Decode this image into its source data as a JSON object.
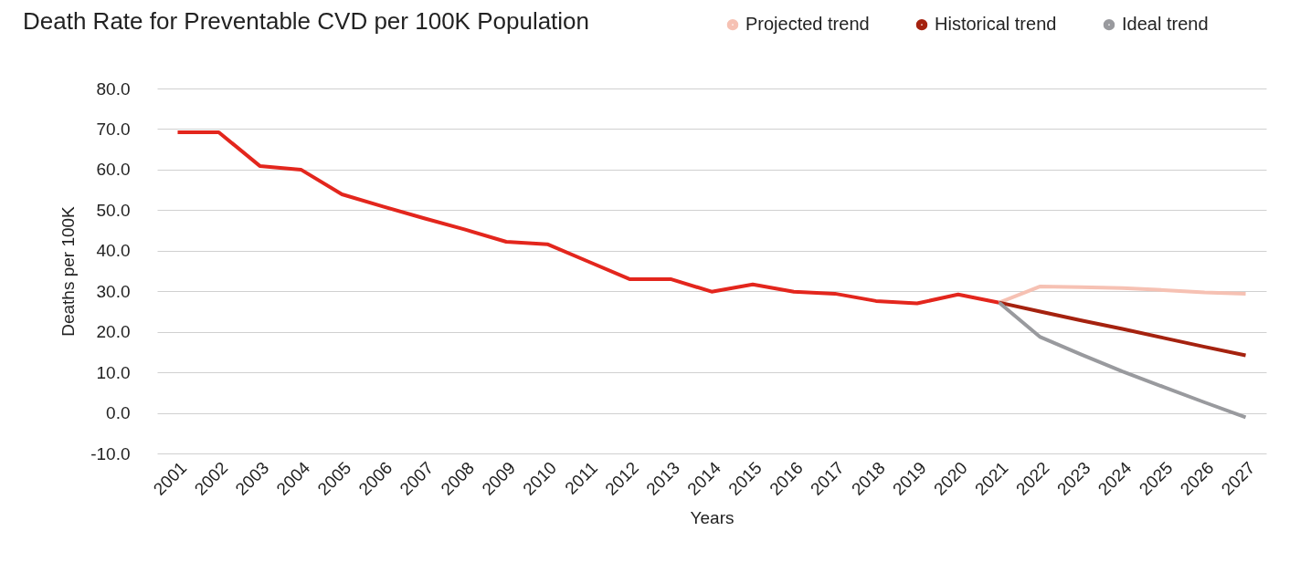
{
  "chart_data": {
    "type": "line",
    "title": "Death Rate for Preventable CVD per 100K Population",
    "xlabel": "Years",
    "ylabel": "Deaths per 100K",
    "categories": [
      "2001",
      "2002",
      "2003",
      "2004",
      "2005",
      "2006",
      "2007",
      "2008",
      "2009",
      "2010",
      "2011",
      "2012",
      "2013",
      "2014",
      "2015",
      "2016",
      "2017",
      "2018",
      "2019",
      "2020",
      "2021",
      "2022",
      "2023",
      "2024",
      "2025",
      "2026",
      "2027"
    ],
    "series": [
      {
        "color": "#e3261d",
        "values": [
          69.2,
          69.2,
          60.9,
          60.0,
          53.9,
          50.9,
          48.0,
          45.2,
          42.2,
          41.6,
          37.3,
          33.0,
          33.0,
          29.9,
          31.7,
          29.9,
          29.4,
          27.6,
          27.0,
          29.2,
          27.2,
          null,
          null,
          null,
          null,
          null,
          null
        ]
      },
      {
        "name": "Projected trend",
        "color": "#f6c1b3",
        "values": [
          null,
          null,
          null,
          null,
          null,
          null,
          null,
          null,
          null,
          null,
          null,
          null,
          null,
          null,
          null,
          null,
          null,
          null,
          null,
          null,
          27.2,
          31.2,
          31.0,
          30.8,
          30.3,
          29.7,
          29.4
        ]
      },
      {
        "name": "Historical trend",
        "color": "#a5220f",
        "values": [
          null,
          null,
          null,
          null,
          null,
          null,
          null,
          null,
          null,
          null,
          null,
          null,
          null,
          null,
          null,
          null,
          null,
          null,
          null,
          null,
          27.2,
          25.0,
          22.8,
          20.7,
          18.5,
          16.3,
          14.2
        ]
      },
      {
        "name": "Ideal trend",
        "color": "#999a9e",
        "values": [
          null,
          null,
          null,
          null,
          null,
          null,
          null,
          null,
          null,
          null,
          null,
          null,
          null,
          null,
          null,
          null,
          null,
          null,
          null,
          null,
          27.2,
          18.7,
          14.4,
          10.2,
          6.4,
          2.6,
          -1.1
        ]
      }
    ],
    "ylim": [
      -10,
      80
    ],
    "yticks": [
      {
        "value": -10,
        "label": "-10.0"
      },
      {
        "value": 0,
        "label": "0.0"
      },
      {
        "value": 10,
        "label": "10.0"
      },
      {
        "value": 20,
        "label": "20.0"
      },
      {
        "value": 30,
        "label": "30.0"
      },
      {
        "value": 40,
        "label": "40.0"
      },
      {
        "value": 50,
        "label": "50.0"
      },
      {
        "value": 60,
        "label": "60.0"
      },
      {
        "value": 70,
        "label": "70.0"
      },
      {
        "value": 80,
        "label": "80.0"
      }
    ],
    "grid": "y",
    "legend": "top right"
  }
}
